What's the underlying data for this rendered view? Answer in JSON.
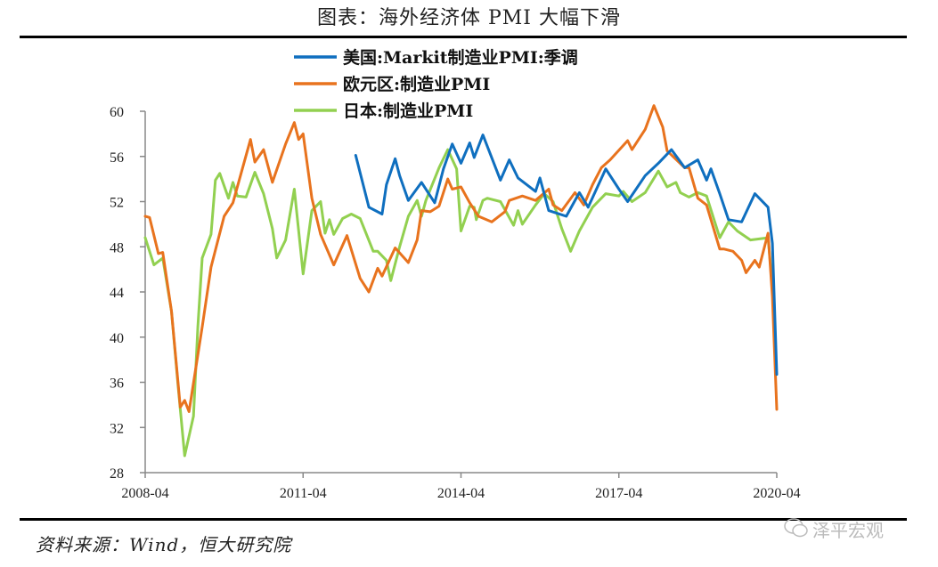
{
  "title": "图表：海外经济体 PMI 大幅下滑",
  "source": "资料来源：Wind，恒大研究院",
  "watermark": "泽平宏观",
  "chart_data": {
    "type": "line",
    "title": "图表：海外经济体 PMI 大幅下滑",
    "x_unit": "months since 2008-04",
    "xlim": [
      0,
      144
    ],
    "ylim": [
      28,
      60
    ],
    "xticks": [
      {
        "t": 0,
        "label": "2008-04"
      },
      {
        "t": 36,
        "label": "2011-04"
      },
      {
        "t": 72,
        "label": "2014-04"
      },
      {
        "t": 108,
        "label": "2017-04"
      },
      {
        "t": 144,
        "label": "2020-04"
      }
    ],
    "yticks": [
      28,
      32,
      36,
      40,
      44,
      48,
      52,
      56,
      60
    ],
    "grid": false,
    "legend": "top-center",
    "series": [
      {
        "name": "美国:Markit制造业PMI:季调",
        "color": "#0F6FBF",
        "points": [
          [
            48,
            56.1
          ],
          [
            51,
            51.5
          ],
          [
            54,
            50.9
          ],
          [
            55,
            53.5
          ],
          [
            57,
            55.8
          ],
          [
            58,
            54.3
          ],
          [
            60,
            52.1
          ],
          [
            63,
            53.7
          ],
          [
            66,
            51.9
          ],
          [
            68,
            54.9
          ],
          [
            70,
            57.1
          ],
          [
            72,
            55.4
          ],
          [
            74,
            57.2
          ],
          [
            75,
            55.9
          ],
          [
            77,
            57.9
          ],
          [
            81,
            53.9
          ],
          [
            83,
            55.7
          ],
          [
            85,
            54.1
          ],
          [
            89,
            52.9
          ],
          [
            90,
            54.1
          ],
          [
            92,
            51.2
          ],
          [
            96,
            50.7
          ],
          [
            99,
            52.8
          ],
          [
            101,
            51.5
          ],
          [
            105,
            54.9
          ],
          [
            108,
            53.1
          ],
          [
            110,
            52.0
          ],
          [
            114,
            54.3
          ],
          [
            117,
            55.4
          ],
          [
            120,
            56.6
          ],
          [
            123,
            55.0
          ],
          [
            126,
            55.7
          ],
          [
            128,
            53.9
          ],
          [
            129,
            54.9
          ],
          [
            131,
            52.7
          ],
          [
            133,
            50.4
          ],
          [
            136,
            50.2
          ],
          [
            139,
            52.7
          ],
          [
            142,
            51.5
          ],
          [
            143,
            48.3
          ],
          [
            144,
            36.7
          ]
        ]
      },
      {
        "name": "欧元区:制造业PMI",
        "color": "#E8731E",
        "points": [
          [
            0,
            50.7
          ],
          [
            1,
            50.6
          ],
          [
            3,
            47.4
          ],
          [
            4,
            47.5
          ],
          [
            6,
            42.3
          ],
          [
            8,
            33.8
          ],
          [
            9,
            34.4
          ],
          [
            10,
            33.4
          ],
          [
            13,
            40.9
          ],
          [
            15,
            46.2
          ],
          [
            18,
            50.7
          ],
          [
            20,
            51.9
          ],
          [
            24,
            57.5
          ],
          [
            25,
            55.5
          ],
          [
            27,
            56.6
          ],
          [
            29,
            53.7
          ],
          [
            32,
            57.1
          ],
          [
            34,
            59.0
          ],
          [
            35,
            57.5
          ],
          [
            36,
            58.0
          ],
          [
            38,
            52.3
          ],
          [
            40,
            49.1
          ],
          [
            43,
            46.4
          ],
          [
            46,
            49.0
          ],
          [
            49,
            45.2
          ],
          [
            51,
            44.0
          ],
          [
            53,
            46.1
          ],
          [
            54,
            45.4
          ],
          [
            57,
            47.9
          ],
          [
            60,
            46.6
          ],
          [
            62,
            48.6
          ],
          [
            63,
            51.2
          ],
          [
            65,
            51.1
          ],
          [
            67,
            51.6
          ],
          [
            69,
            54.0
          ],
          [
            70,
            53.1
          ],
          [
            72,
            53.3
          ],
          [
            74,
            51.9
          ],
          [
            76,
            50.7
          ],
          [
            79,
            50.2
          ],
          [
            82,
            51.1
          ],
          [
            83,
            52.1
          ],
          [
            86,
            52.5
          ],
          [
            89,
            52.1
          ],
          [
            92,
            53.1
          ],
          [
            93,
            51.7
          ],
          [
            95,
            51.2
          ],
          [
            98,
            52.8
          ],
          [
            100,
            51.7
          ],
          [
            102,
            53.5
          ],
          [
            104,
            55.0
          ],
          [
            106,
            55.7
          ],
          [
            110,
            57.4
          ],
          [
            111,
            56.6
          ],
          [
            114,
            58.4
          ],
          [
            116,
            60.5
          ],
          [
            118,
            58.6
          ],
          [
            119,
            56.5
          ],
          [
            123,
            55.0
          ],
          [
            124,
            55.0
          ],
          [
            126,
            52.3
          ],
          [
            128,
            51.7
          ],
          [
            131,
            47.8
          ],
          [
            132,
            47.8
          ],
          [
            134,
            47.6
          ],
          [
            136,
            46.8
          ],
          [
            137,
            45.7
          ],
          [
            139,
            46.8
          ],
          [
            140,
            46.2
          ],
          [
            142,
            49.2
          ],
          [
            143,
            43.6
          ],
          [
            144,
            33.6
          ]
        ]
      },
      {
        "name": "日本:制造业PMI",
        "color": "#92D050",
        "points": [
          [
            0,
            48.8
          ],
          [
            2,
            46.4
          ],
          [
            4,
            47.0
          ],
          [
            6,
            42.3
          ],
          [
            7.5,
            35.7
          ],
          [
            9,
            29.5
          ],
          [
            11,
            33.0
          ],
          [
            12,
            40.9
          ],
          [
            13,
            47.0
          ],
          [
            15,
            49.1
          ],
          [
            16,
            53.9
          ],
          [
            17,
            54.5
          ],
          [
            19,
            52.3
          ],
          [
            20,
            53.7
          ],
          [
            21,
            52.5
          ],
          [
            23,
            52.4
          ],
          [
            25,
            54.6
          ],
          [
            27,
            52.7
          ],
          [
            29,
            49.6
          ],
          [
            30,
            47.0
          ],
          [
            32,
            48.6
          ],
          [
            34,
            53.1
          ],
          [
            36,
            45.6
          ],
          [
            38,
            51.2
          ],
          [
            40,
            52.0
          ],
          [
            41,
            49.2
          ],
          [
            42,
            50.4
          ],
          [
            43,
            49.1
          ],
          [
            45,
            50.5
          ],
          [
            47,
            50.9
          ],
          [
            49,
            50.5
          ],
          [
            52,
            47.6
          ],
          [
            53,
            47.6
          ],
          [
            55,
            46.8
          ],
          [
            56,
            45.0
          ],
          [
            58,
            48.0
          ],
          [
            60,
            50.7
          ],
          [
            62,
            52.1
          ],
          [
            63,
            50.7
          ],
          [
            64,
            52.1
          ],
          [
            67,
            55.0
          ],
          [
            69,
            56.6
          ],
          [
            71,
            54.9
          ],
          [
            72,
            49.4
          ],
          [
            74,
            51.6
          ],
          [
            75,
            51.5
          ],
          [
            75.5,
            50.4
          ],
          [
            77,
            52.1
          ],
          [
            78,
            52.3
          ],
          [
            81,
            52.0
          ],
          [
            84,
            49.9
          ],
          [
            85,
            51.2
          ],
          [
            86,
            50.0
          ],
          [
            89,
            51.7
          ],
          [
            91,
            52.7
          ],
          [
            93,
            52.0
          ],
          [
            95,
            49.6
          ],
          [
            97,
            47.6
          ],
          [
            99,
            49.4
          ],
          [
            102,
            51.5
          ],
          [
            105,
            52.7
          ],
          [
            108,
            52.5
          ],
          [
            109,
            52.9
          ],
          [
            111,
            52.0
          ],
          [
            114,
            52.8
          ],
          [
            117,
            54.7
          ],
          [
            119,
            53.3
          ],
          [
            121,
            53.7
          ],
          [
            122,
            52.8
          ],
          [
            124,
            52.4
          ],
          [
            126,
            52.8
          ],
          [
            128,
            52.5
          ],
          [
            131,
            48.8
          ],
          [
            133,
            50.2
          ],
          [
            135,
            49.4
          ],
          [
            138,
            48.6
          ],
          [
            140,
            48.7
          ],
          [
            142,
            48.8
          ],
          [
            143,
            44.6
          ]
        ]
      }
    ]
  }
}
